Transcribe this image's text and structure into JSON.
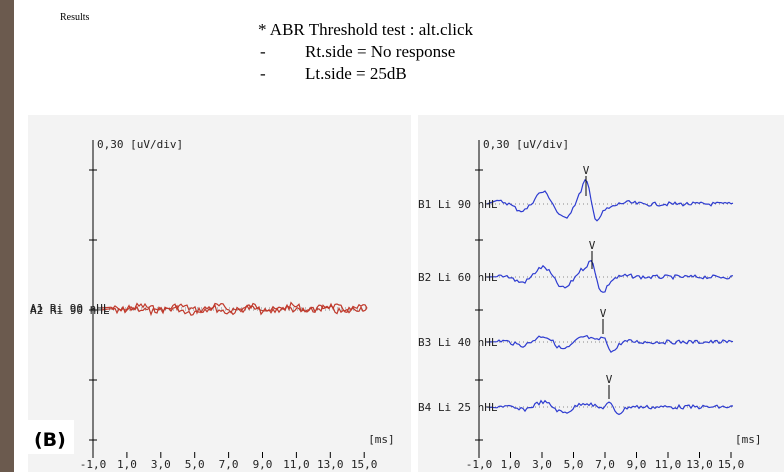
{
  "header": {
    "label": "Results",
    "title": "* ABR Threshold test : alt.click",
    "lines": [
      {
        "dash": "-",
        "text": "Rt.side = No response"
      },
      {
        "dash": "-",
        "text": "Lt.side = 25dB"
      }
    ]
  },
  "panel_tag": "(B)",
  "panels": [
    {
      "ylabel": "0,30 [uV/div]",
      "xunit": "[ms]",
      "xticks": [
        "-1,0",
        "1,0",
        "3,0",
        "5,0",
        "7,0",
        "9,0",
        "11,0",
        "13,0",
        "15,0"
      ],
      "traces": [
        {
          "label": "A1 Ri 90 nHL"
        },
        {
          "label": "A2 Ri 90 nHL"
        }
      ]
    },
    {
      "ylabel": "0,30 [uV/div]",
      "xunit": "[ms]",
      "xticks": [
        "-1,0",
        "1,0",
        "3,0",
        "5,0",
        "7,0",
        "9,0",
        "11,0",
        "13,0",
        "15,0"
      ],
      "traces": [
        {
          "label": "B1 Li 90 nHL",
          "peak": "V"
        },
        {
          "label": "B2 Li 60 nHL",
          "peak": "V"
        },
        {
          "label": "B3 Li 40 nHL",
          "peak": "V"
        },
        {
          "label": "B4 Li 25 nHL",
          "peak": "V"
        }
      ]
    }
  ]
}
